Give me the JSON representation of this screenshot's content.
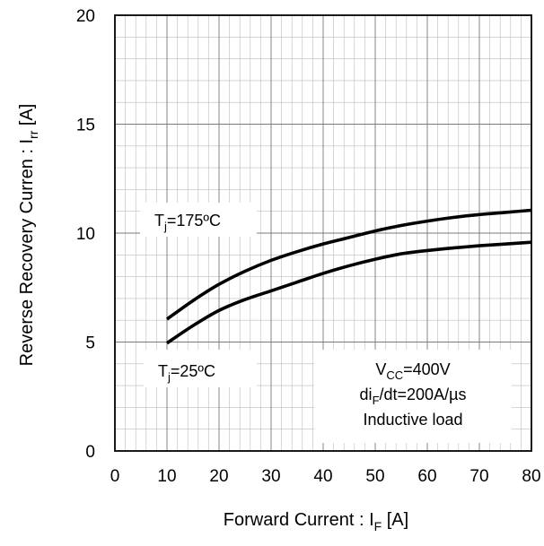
{
  "chart_data": {
    "type": "line",
    "xlabel": {
      "main": "Forward Current  : I",
      "sub": "F",
      "unit": " [A]"
    },
    "ylabel": {
      "main": "Reverse Recovery Curren : I",
      "sub": "rr",
      "unit": " [A]"
    },
    "xlim": [
      0,
      80
    ],
    "ylim": [
      0,
      20
    ],
    "x_ticks": [
      "0",
      "10",
      "20",
      "30",
      "40",
      "50",
      "60",
      "70",
      "80"
    ],
    "y_ticks": [
      "0",
      "5",
      "10",
      "15",
      "20"
    ],
    "grid": true,
    "series": [
      {
        "x": [
          10,
          15,
          20,
          25,
          30,
          35,
          40,
          45,
          50,
          55,
          60,
          65,
          70,
          75,
          80
        ],
        "y": [
          6.05,
          6.9,
          7.65,
          8.25,
          8.75,
          9.15,
          9.5,
          9.8,
          10.1,
          10.35,
          10.55,
          10.72,
          10.85,
          10.95,
          11.05
        ]
      },
      {
        "x": [
          10,
          15,
          20,
          25,
          30,
          35,
          40,
          45,
          50,
          55,
          60,
          65,
          70,
          75,
          80
        ],
        "y": [
          4.95,
          5.75,
          6.45,
          6.95,
          7.35,
          7.75,
          8.15,
          8.5,
          8.8,
          9.05,
          9.2,
          9.32,
          9.42,
          9.5,
          9.58
        ]
      }
    ],
    "annotations": {
      "tj175": {
        "main": "T",
        "sub": "j",
        "rest": "=175ºC"
      },
      "tj25": {
        "main": "T",
        "sub": "j",
        "rest": "=25ºC"
      },
      "vcc": {
        "main": "V",
        "sub": "CC",
        "rest": "=400V"
      },
      "didt": {
        "main": "di",
        "sub": "F",
        "rest": "/dt=200A/µs"
      },
      "load": "Inductive load"
    }
  }
}
